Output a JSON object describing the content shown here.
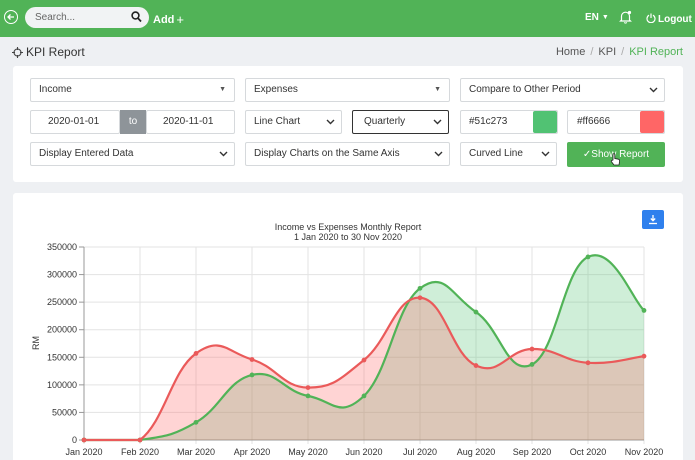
{
  "topbar": {
    "search_placeholder": "Search...",
    "add_label": "Add",
    "language": "EN",
    "logout_label": "Logout"
  },
  "header": {
    "page_title": "KPI Report",
    "breadcrumbs": [
      "Home",
      "KPI",
      "KPI Report"
    ]
  },
  "filters": {
    "metric1": "Income",
    "metric2": "Expenses",
    "compare": "Compare to Other Period",
    "date_from": "2020-01-01",
    "date_to_label": "to",
    "date_to": "2020-11-01",
    "chart_type": "Line Chart",
    "period": "Quarterly",
    "color1": "#51c273",
    "color2": "#ff6666",
    "display_mode": "Display Entered Data",
    "axis_mode": "Display Charts on the Same Axis",
    "line_style": "Curved Line",
    "show_report_label": "Show Report"
  },
  "chart_data": {
    "type": "area",
    "title": "Income vs Expenses Monthly Report",
    "subtitle": "1 Jan 2020 to 30 Nov 2020",
    "ylabel": "RM",
    "xlabel": "",
    "categories": [
      "Jan 2020",
      "Feb 2020",
      "Mar 2020",
      "Apr 2020",
      "May 2020",
      "Jun 2020",
      "Jul 2020",
      "Aug 2020",
      "Sep 2020",
      "Oct 2020",
      "Nov 2020"
    ],
    "yticks": [
      "0",
      "50000",
      "100000",
      "150000",
      "200000",
      "250000",
      "300000",
      "350000"
    ],
    "ylim": [
      0,
      350000
    ],
    "grid": true,
    "series": [
      {
        "color": "#51b357",
        "fill": "#51c273",
        "values": [
          0,
          0,
          32000,
          118000,
          80000,
          80000,
          275000,
          232000,
          137000,
          332000,
          235000
        ]
      },
      {
        "color": "#ea5a5a",
        "fill": "#ff6666",
        "values": [
          0,
          0,
          157000,
          146000,
          95000,
          145000,
          258000,
          135000,
          165000,
          140000,
          152000
        ]
      }
    ]
  }
}
